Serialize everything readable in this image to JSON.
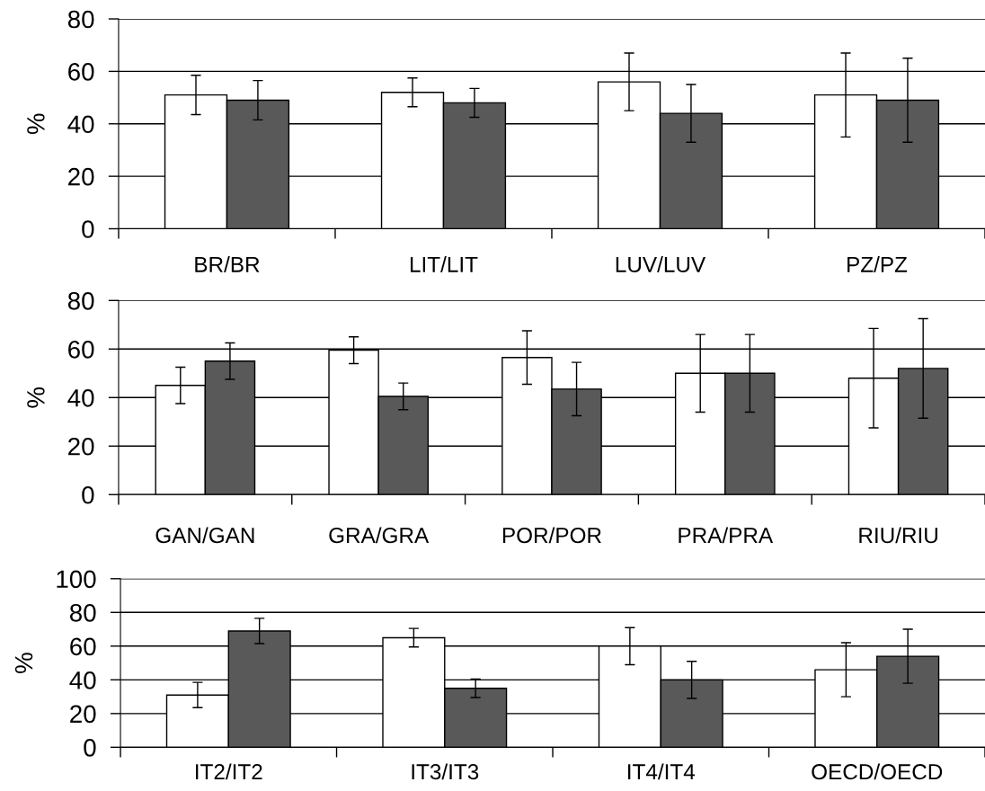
{
  "chart_data": [
    {
      "type": "bar",
      "ylabel": "%",
      "categories": [
        "BR/BR",
        "LIT/LIT",
        "LUV/LUV",
        "PZ/PZ"
      ],
      "series": [
        {
          "color": "#ffffff",
          "values": [
            51,
            52,
            56,
            51
          ],
          "errors": [
            7.5,
            5.5,
            11,
            16
          ]
        },
        {
          "color": "#595959",
          "values": [
            49,
            48,
            44,
            49
          ],
          "errors": [
            7.5,
            5.5,
            11,
            16
          ]
        }
      ],
      "ylim": [
        0,
        80
      ],
      "yticks": [
        0,
        20,
        40,
        60,
        80
      ],
      "grid": "y"
    },
    {
      "type": "bar",
      "ylabel": "%",
      "categories": [
        "GAN/GAN",
        "GRA/GRA",
        "POR/POR",
        "PRA/PRA",
        "RIU/RIU"
      ],
      "series": [
        {
          "color": "#ffffff",
          "values": [
            45,
            59.5,
            56.5,
            50,
            48
          ],
          "errors": [
            7.5,
            5.5,
            11,
            16,
            20.5
          ]
        },
        {
          "color": "#595959",
          "values": [
            55,
            40.5,
            43.5,
            50,
            52
          ],
          "errors": [
            7.5,
            5.5,
            11,
            16,
            20.5
          ]
        }
      ],
      "ylim": [
        0,
        80
      ],
      "yticks": [
        0,
        20,
        40,
        60,
        80
      ],
      "grid": "y"
    },
    {
      "type": "bar",
      "ylabel": "%",
      "categories": [
        "IT2/IT2",
        "IT3/IT3",
        "IT4/IT4",
        "OECD/OECD"
      ],
      "series": [
        {
          "color": "#ffffff",
          "values": [
            31,
            65,
            60,
            46
          ],
          "errors": [
            7.5,
            5.5,
            11,
            16
          ]
        },
        {
          "color": "#595959",
          "values": [
            69,
            35,
            40,
            54
          ],
          "errors": [
            7.5,
            5.5,
            11,
            16
          ]
        }
      ],
      "ylim": [
        0,
        100
      ],
      "yticks": [
        0,
        20,
        40,
        60,
        80,
        100
      ],
      "grid": "y"
    }
  ]
}
